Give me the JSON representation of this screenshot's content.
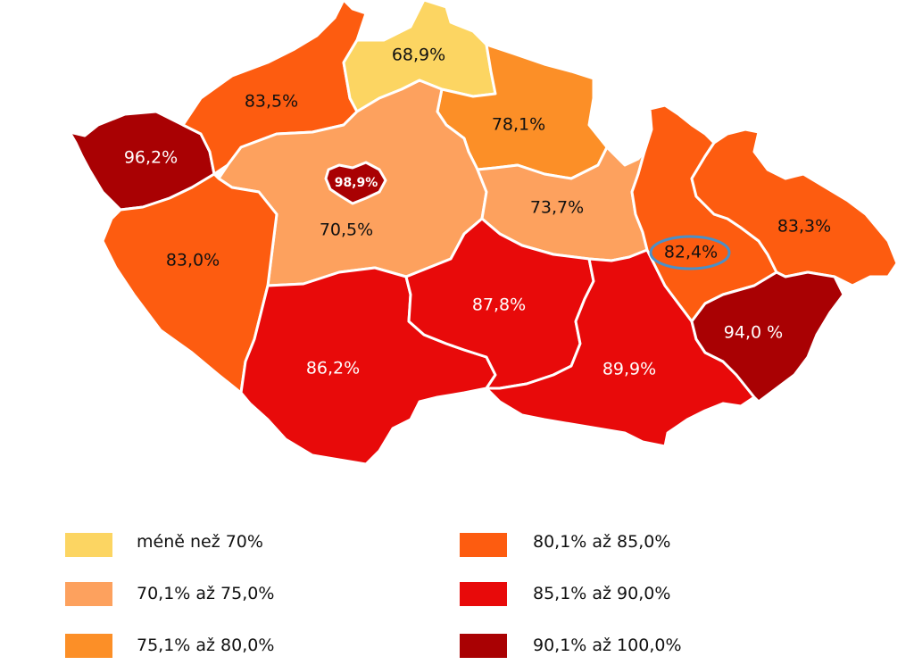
{
  "colors": {
    "c1": "#fcd562",
    "c2": "#fda15e",
    "c3": "#fc8f27",
    "c4": "#fd5c10",
    "c5": "#e80a0a",
    "c6": "#a90103",
    "highlight": "#4a90c8"
  },
  "regions": [
    {
      "id": "karlovarsky",
      "value": "96,2%",
      "class": "c6"
    },
    {
      "id": "ustecky",
      "value": "83,5%",
      "class": "c4"
    },
    {
      "id": "liberecky",
      "value": "68,9%",
      "class": "c1"
    },
    {
      "id": "kralovehradecky",
      "value": "78,1%",
      "class": "c3"
    },
    {
      "id": "stredocesky",
      "value": "70,5%",
      "class": "c2"
    },
    {
      "id": "praha",
      "value": "98,9%",
      "class": "c6"
    },
    {
      "id": "pardubicky",
      "value": "73,7%",
      "class": "c2"
    },
    {
      "id": "plzensky",
      "value": "83,0%",
      "class": "c4"
    },
    {
      "id": "jihocesky",
      "value": "86,2%",
      "class": "c5"
    },
    {
      "id": "vysocina",
      "value": "87,8%",
      "class": "c5"
    },
    {
      "id": "jihomoravsky",
      "value": "89,9%",
      "class": "c5"
    },
    {
      "id": "olomoucky",
      "value": "82,4%",
      "class": "c4",
      "highlighted": true
    },
    {
      "id": "moravskoslezsky",
      "value": "83,3%",
      "class": "c4"
    },
    {
      "id": "zlinsky",
      "value": "94,0 %",
      "class": "c6"
    }
  ],
  "legend": [
    {
      "label": "méně než 70%",
      "class": "c1"
    },
    {
      "label": "70,1% až 75,0%",
      "class": "c2"
    },
    {
      "label": "75,1% až 80,0%",
      "class": "c3"
    },
    {
      "label": "80,1% až 85,0%",
      "class": "c4"
    },
    {
      "label": "85,1% až 90,0%",
      "class": "c5"
    },
    {
      "label": "90,1% až 100,0%",
      "class": "c6"
    }
  ]
}
